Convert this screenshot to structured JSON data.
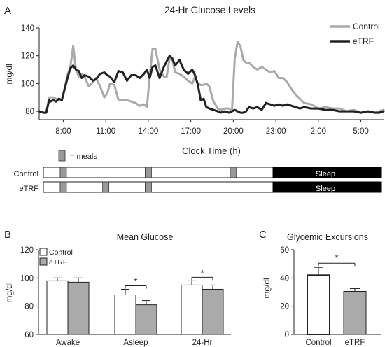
{
  "chart_data": [
    {
      "panel": "A",
      "type": "line",
      "title": "24-Hr Glucose Levels",
      "xlabel": "Clock Time (h)",
      "ylabel": "mg/dl",
      "ylim": [
        74,
        140
      ],
      "yticks": [
        80,
        100,
        120,
        140
      ],
      "xticks": [
        "8:00",
        "11:00",
        "14:00",
        "17:00",
        "20:00",
        "23:00",
        "2:00",
        "5:00"
      ],
      "xticks_hours": [
        8,
        11,
        14,
        17,
        20,
        23,
        26,
        29
      ],
      "xlim_hours": [
        6.3,
        30.6
      ],
      "legend_position": "top-right",
      "series": [
        {
          "name": "Control",
          "color": "#aaaaaa",
          "x": [
            6.3,
            6.6,
            6.8,
            7.0,
            7.1,
            7.3,
            7.5,
            7.7,
            7.9,
            8.1,
            8.3,
            8.5,
            8.7,
            8.9,
            9.1,
            9.3,
            9.5,
            9.8,
            10.1,
            10.3,
            10.6,
            10.9,
            11.1,
            11.3,
            11.6,
            11.9,
            12.2,
            12.5,
            12.8,
            13.1,
            13.4,
            13.7,
            13.9,
            14.1,
            14.3,
            14.5,
            14.8,
            15.1,
            15.3,
            15.5,
            15.7,
            15.9,
            16.2,
            16.5,
            16.8,
            17.1,
            17.3,
            17.5,
            17.7,
            17.9,
            18.1,
            18.3,
            18.6,
            18.9,
            19.1,
            19.4,
            19.7,
            19.9,
            20.1,
            20.3,
            20.5,
            20.7,
            20.9,
            21.1,
            21.4,
            21.7,
            22.0,
            22.3,
            22.6,
            22.9,
            23.2,
            23.5,
            23.8,
            24.1,
            24.4,
            24.7,
            25.0,
            25.5,
            26.0,
            26.5,
            27.0,
            27.5,
            28.0,
            28.5,
            29.0,
            29.5,
            30.0,
            30.3,
            30.6
          ],
          "y": [
            80,
            79,
            79,
            90,
            90,
            90,
            89,
            89,
            88,
            97,
            106,
            112,
            127,
            110,
            105,
            107,
            105,
            98,
            101,
            104,
            98,
            90,
            93,
            100,
            99,
            88,
            88,
            88,
            87,
            86,
            84,
            85,
            83,
            105,
            125,
            125,
            110,
            105,
            105,
            118,
            117,
            108,
            107,
            105,
            102,
            100,
            105,
            100,
            99,
            99,
            100,
            98,
            87,
            82,
            81,
            82,
            82,
            80,
            118,
            130,
            127,
            117,
            115,
            115,
            112,
            110,
            112,
            110,
            108,
            109,
            104,
            104,
            101,
            96,
            92,
            89,
            86,
            85,
            82,
            83,
            82,
            82,
            80,
            81,
            79,
            80,
            79,
            80,
            81
          ]
        },
        {
          "name": "eTRF",
          "color": "#222222",
          "x": [
            6.3,
            6.6,
            6.8,
            7.0,
            7.1,
            7.3,
            7.5,
            7.7,
            7.9,
            8.1,
            8.3,
            8.5,
            8.7,
            8.9,
            9.1,
            9.3,
            9.5,
            9.8,
            10.1,
            10.3,
            10.6,
            10.9,
            11.1,
            11.3,
            11.6,
            11.9,
            12.2,
            12.5,
            12.8,
            13.1,
            13.4,
            13.7,
            13.9,
            14.1,
            14.3,
            14.5,
            14.8,
            15.1,
            15.3,
            15.5,
            15.7,
            15.9,
            16.2,
            16.5,
            16.8,
            17.1,
            17.3,
            17.5,
            17.7,
            17.9,
            18.1,
            18.3,
            18.6,
            18.9,
            19.1,
            19.4,
            19.7,
            19.9,
            20.1,
            20.3,
            20.5,
            20.7,
            20.9,
            21.1,
            21.4,
            21.7,
            22.0,
            22.3,
            22.6,
            22.9,
            23.2,
            23.5,
            23.8,
            24.1,
            24.4,
            24.7,
            25.0,
            25.5,
            26.0,
            26.5,
            27.0,
            27.5,
            28.0,
            28.5,
            29.0,
            29.5,
            30.0,
            30.3,
            30.6
          ],
          "y": [
            80,
            79,
            79,
            88,
            87,
            88,
            87,
            89,
            88,
            96,
            104,
            111,
            113,
            110,
            109,
            104,
            106,
            105,
            102,
            103,
            107,
            108,
            106,
            105,
            101,
            109,
            108,
            102,
            106,
            106,
            104,
            107,
            110,
            104,
            112,
            113,
            104,
            112,
            116,
            120,
            118,
            113,
            117,
            110,
            107,
            110,
            106,
            99,
            88,
            89,
            83,
            82,
            81,
            80,
            79,
            80,
            79,
            80,
            81,
            80,
            79,
            79,
            80,
            83,
            82,
            83,
            81,
            86,
            85,
            84,
            85,
            84,
            85,
            84,
            83,
            82,
            83,
            82,
            82,
            81,
            81,
            80,
            80,
            80,
            79,
            80,
            79,
            79,
            80
          ]
        }
      ],
      "meal_legend": "= meals",
      "schedule": [
        {
          "label": "Control",
          "meals_hours": [
            8.0,
            14.0,
            20.0
          ],
          "sleep_start": 22.8,
          "sleep_label": "Sleep"
        },
        {
          "label": "eTRF",
          "meals_hours": [
            8.0,
            11.0,
            14.0
          ],
          "sleep_start": 22.8,
          "sleep_label": "Sleep"
        }
      ]
    },
    {
      "panel": "B",
      "type": "bar",
      "title": "Mean Glucose",
      "ylabel": "mg/dl",
      "ylim": [
        60,
        120
      ],
      "yticks": [
        60,
        80,
        100,
        120
      ],
      "categories": [
        "Awake",
        "Asleep",
        "24-Hr"
      ],
      "legend_position": "top-left",
      "series": [
        {
          "name": "Control",
          "color": "#ffffff",
          "values": [
            98,
            88,
            95
          ],
          "errors": [
            2,
            4,
            3
          ]
        },
        {
          "name": "eTRF",
          "color": "#aaaaaa",
          "values": [
            97,
            81,
            92
          ],
          "errors": [
            3,
            3,
            3
          ]
        }
      ],
      "significance": [
        "",
        "*",
        "*"
      ]
    },
    {
      "panel": "C",
      "type": "bar",
      "title": "Glycemic Excursions",
      "ylabel": "mg/dl",
      "ylim": [
        0,
        60
      ],
      "yticks": [
        0,
        20,
        40,
        60
      ],
      "categories": [
        "Control",
        "eTRF"
      ],
      "values": [
        42,
        30.5
      ],
      "errors": [
        5.5,
        2
      ],
      "colors": [
        "#ffffff",
        "#aaaaaa"
      ],
      "significance": "*"
    }
  ],
  "panel_letters": [
    "A",
    "B",
    "C"
  ]
}
